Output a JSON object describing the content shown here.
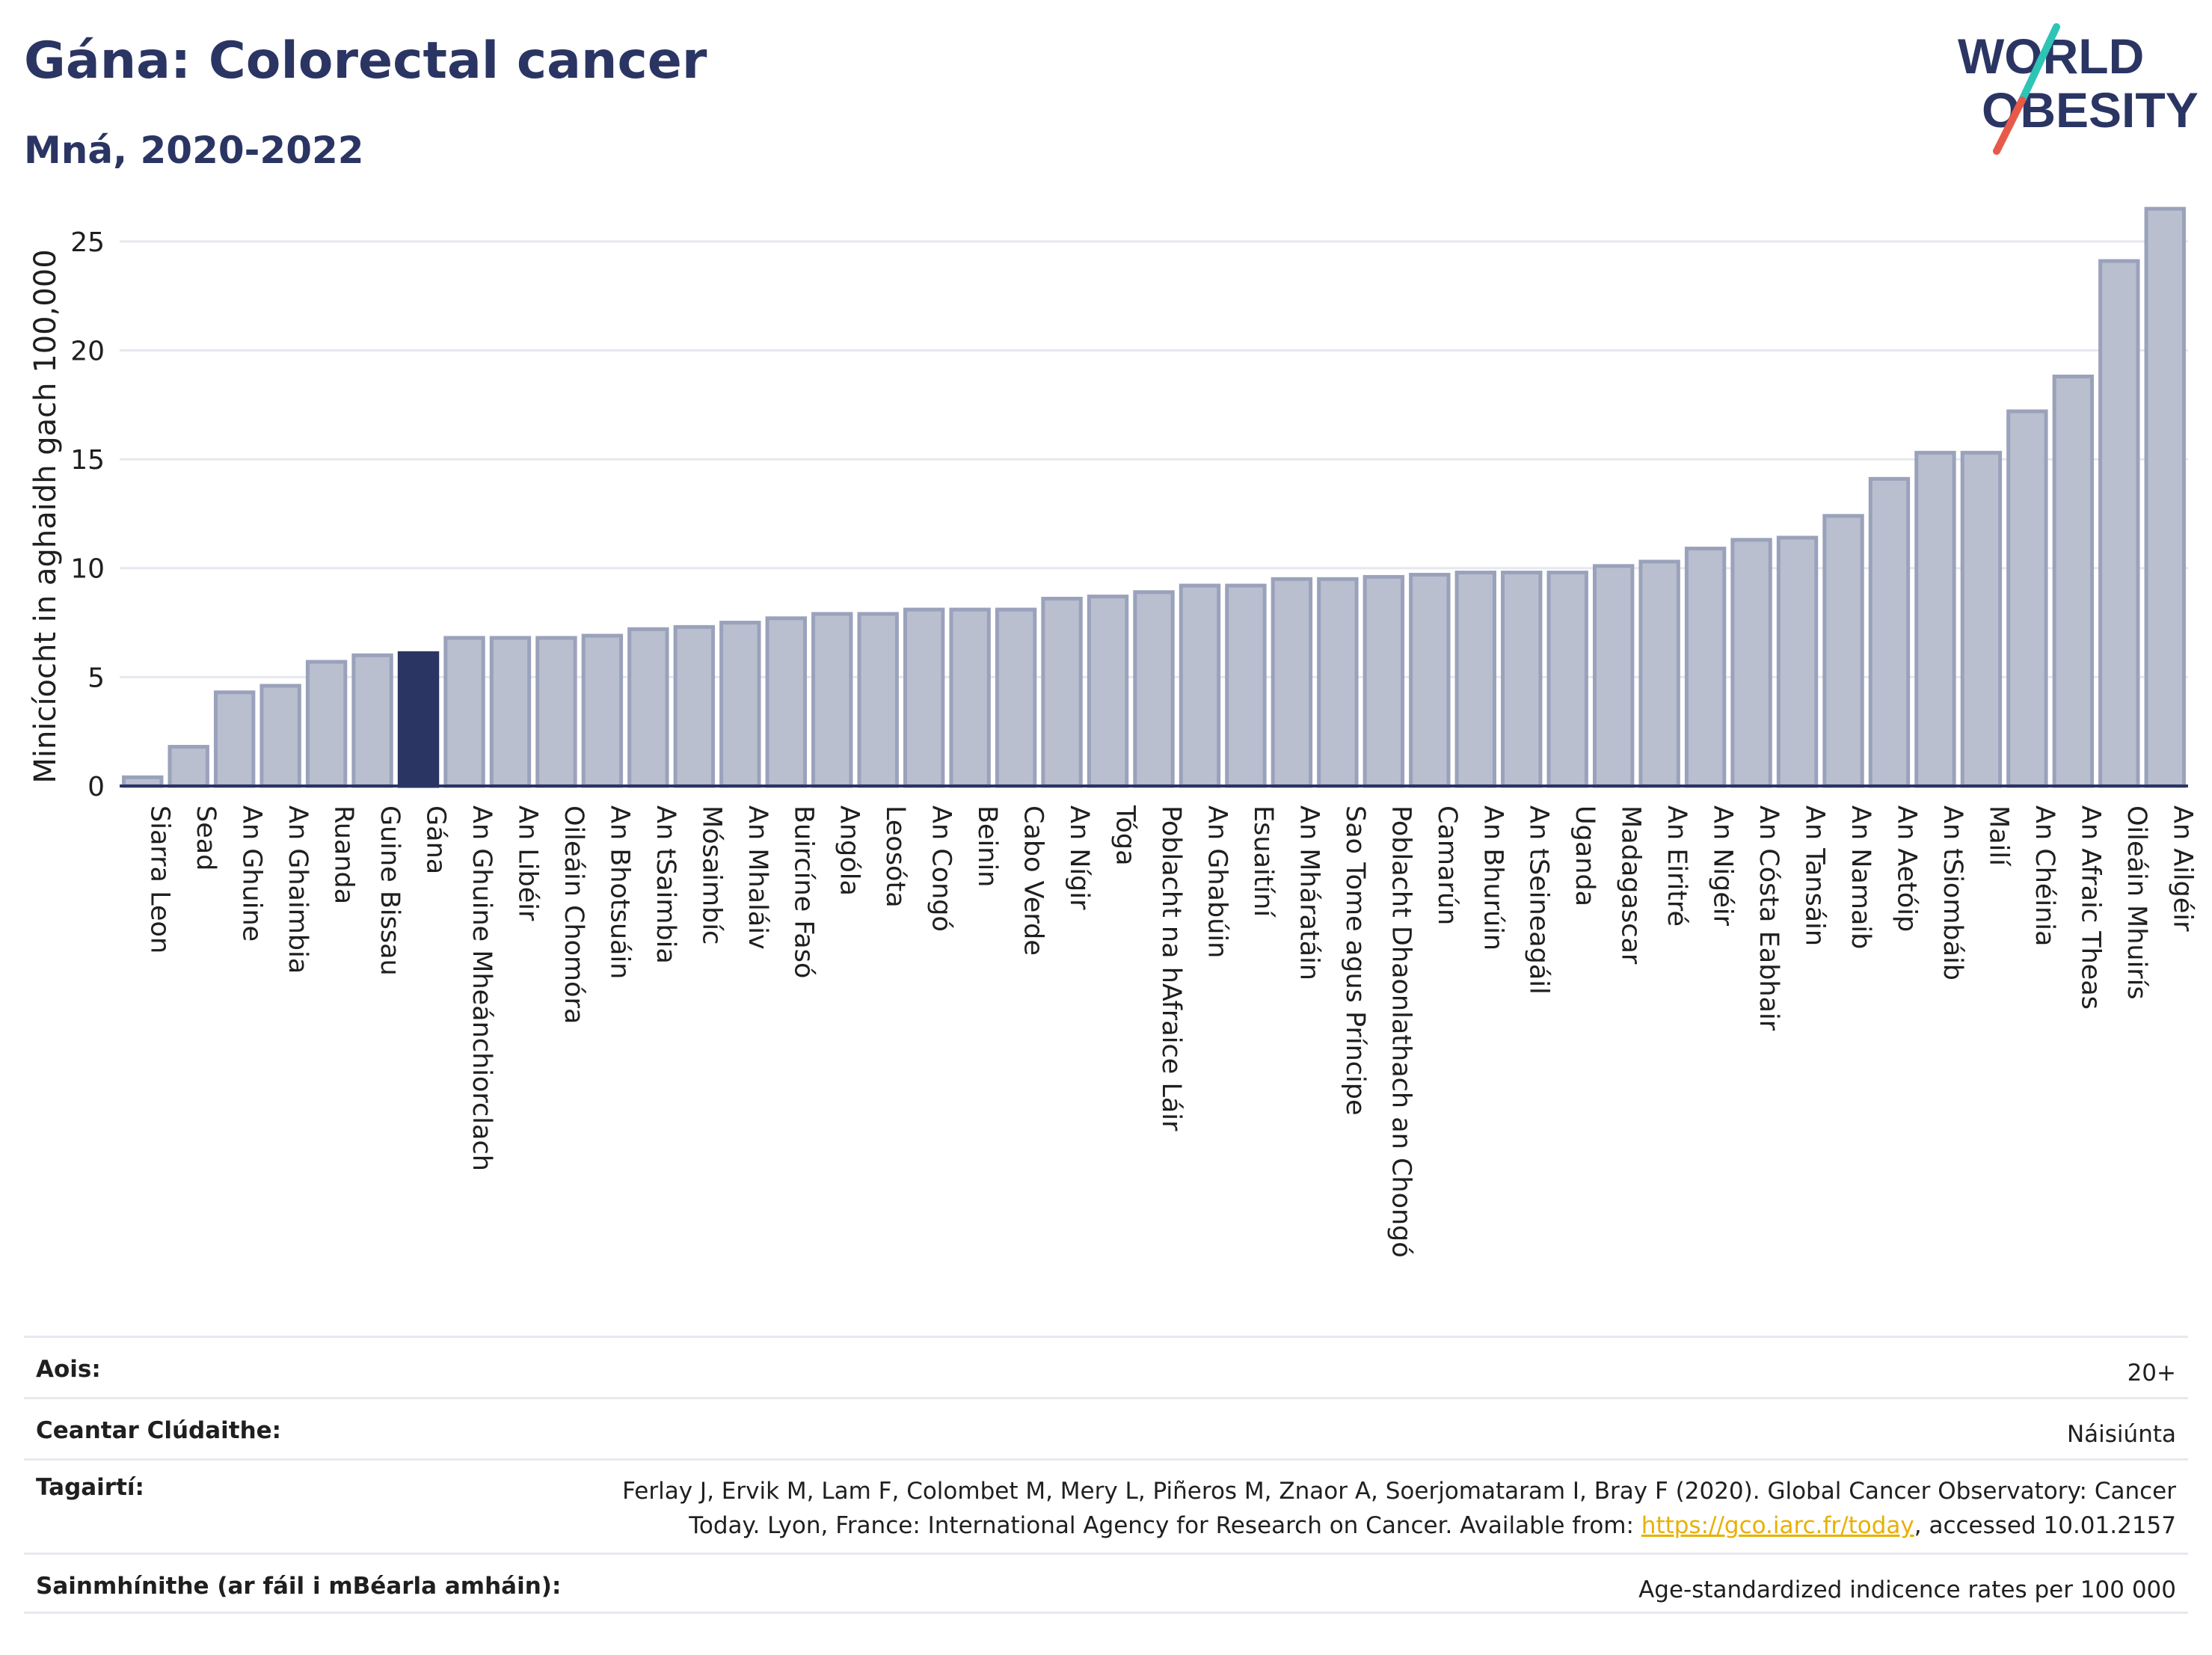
{
  "header": {
    "title": "Gána: Colorectal cancer",
    "subtitle": "Mná, 2020-2022"
  },
  "logo": {
    "line1": "WORLD",
    "line2": "OBESITY",
    "colors": {
      "text": "#2b3563",
      "slash_teal": "#2ec4b6",
      "slash_red": "#e8594a"
    }
  },
  "chart_data": {
    "type": "bar",
    "ylabel": "Minicíocht in aghaidh gach 100,000",
    "ylim": [
      0,
      27.5
    ],
    "yticks": [
      0,
      5,
      10,
      15,
      20,
      25
    ],
    "grid": true,
    "highlight": "Gána",
    "colors": {
      "bar": "#b9bfcf",
      "bar_edge": "#9aa2bb",
      "highlight": "#2b3563",
      "grid": "#e6e8ee",
      "axis": "#2b3563"
    },
    "categories": [
      "Siarra Leon",
      "Sead",
      "An Ghuine",
      "An Ghaimbia",
      "Ruanda",
      "Guine Bissau",
      "Gána",
      "An Ghuine Mheánchiorclach",
      "An Libéir",
      "Oileáin Chomóra",
      "An Bhotsuáin",
      "An tSaimbia",
      "Mósaimbíc",
      "An Mhaláiv",
      "Buircíne Fasó",
      "Angóla",
      "Leosóta",
      "An Congó",
      "Beinin",
      "Cabo Verde",
      "An Nígir",
      "Tóga",
      "Poblacht na hAfraice Láir",
      "An Ghabúin",
      "Esuaitíní",
      "An Mháratáin",
      "Sao Tome agus Príncipe",
      "Poblacht Dhaonlathach an Chongó",
      "Camarún",
      "An Bhurúin",
      "An tSeineagáil",
      "Uganda",
      "Madagascar",
      "An Eiritré",
      "An Nigéir",
      "An Cósta Eabhair",
      "An Tansáin",
      "An Namaib",
      "An Aetóip",
      "An tSiombáib",
      "Mailí",
      "An Chéinia",
      "An Afraic Theas",
      "Oileáin Mhuirís",
      "An Ailgéir"
    ],
    "values": [
      0.4,
      1.8,
      4.3,
      4.6,
      5.7,
      6.0,
      6.1,
      6.8,
      6.8,
      6.8,
      6.9,
      7.2,
      7.3,
      7.5,
      7.7,
      7.9,
      7.9,
      8.1,
      8.1,
      8.1,
      8.6,
      8.7,
      8.9,
      9.2,
      9.2,
      9.5,
      9.5,
      9.6,
      9.7,
      9.8,
      9.8,
      9.8,
      10.1,
      10.3,
      10.9,
      11.3,
      11.4,
      12.4,
      14.1,
      15.3,
      15.3,
      17.2,
      18.8,
      24.1,
      26.5
    ]
  },
  "meta": {
    "age": {
      "label": "Aois:",
      "value": "20+"
    },
    "coverage": {
      "label": "Ceantar Clúdaithe:",
      "value": "Náisiúnta"
    },
    "references": {
      "label": "Tagairtí:",
      "line1": "Ferlay J, Ervik M, Lam F, Colombet M, Mery L, Piñeros M, Znaor A, Soerjomataram I, Bray F (2020). Global Cancer Observatory: Cancer",
      "line2_before": "Today. Lyon, France: International Agency for Research on Cancer. Available from: ",
      "link": "https://gco.iarc.fr/today",
      "line2_after": ", accessed 10.01.2157"
    },
    "definitions": {
      "label": "Sainmhínithe (ar fáil i mBéarla amháin):",
      "value": "Age-standardized indicence rates per 100 000"
    }
  }
}
